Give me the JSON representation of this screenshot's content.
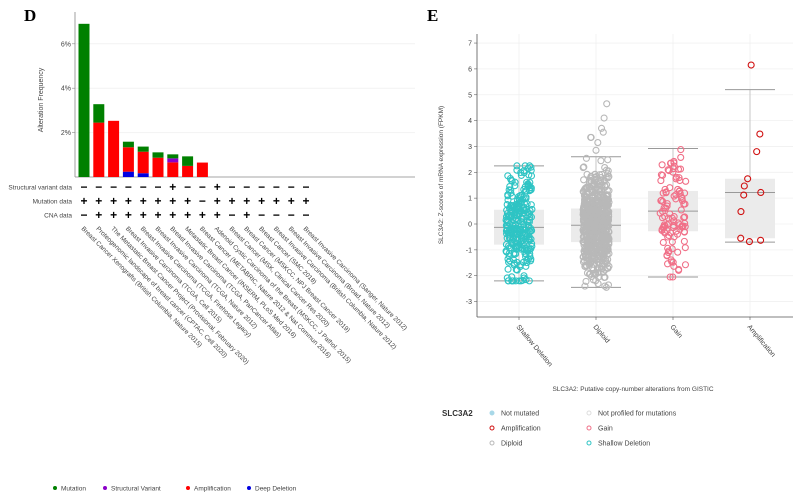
{
  "chart_data": [
    {
      "panel": "D",
      "type": "bar",
      "stacked": true,
      "ylabel": "Alteration Frequency",
      "ylim": [
        0,
        7
      ],
      "yticks": [
        "2%",
        "4%",
        "6%"
      ],
      "yticks_values": [
        2,
        4,
        6
      ],
      "categories": [
        "Breast Cancer Xenografts (British Columbia, Nature 2015)",
        "Proteogenomic landscape of breast cancer (CPTAC, Cell 2020)",
        "The Metastatic Breast Cancer Project (Provisional, February 2020)",
        "Breast Invasive Carcinoma (TCGA, Cell 2015)",
        "Breast Invasive Carcinoma (TCGA, Firehose Legacy)",
        "Breast Invasive Carcinoma (TCGA, Nature 2012)",
        "Breast Invasive Carcinoma (TCGA, PanCancer Atlas)",
        "Metastatic Breast Cancer (INSERM, PLoS Med 2016)",
        "Breast Cancer (METABRIC, Nature 2012 & Nat Commun 2016)",
        "Adenoid Cystic Carcinoma of the Breast (MSKCC, J Pathol. 2015)",
        "Breast Cancer (MSK, Clinical Cancer Res 2020)",
        "Breast Cancer (MSKCC, NPJ Breast Cancer 2019)",
        "Breast Cancer (SMC 2018)",
        "Breast Invasive Carcinoma (British Columbia, Nature 2012)",
        "Breast Invasive Carcinoma (Broad, Nature 2012)",
        "Breast Invasive Carcinoma (Sanger, Nature 2012)"
      ],
      "series": [
        {
          "name": "Deep Deletion",
          "color": "#0000e0",
          "values": [
            0,
            0,
            0,
            0.24,
            0.17,
            0,
            0,
            0,
            0,
            0,
            0,
            0,
            0,
            0,
            0,
            0
          ]
        },
        {
          "name": "Amplification",
          "color": "#ff0000",
          "values": [
            0,
            2.45,
            2.53,
            1.1,
            0.97,
            0.87,
            0.66,
            0.5,
            0.65,
            0,
            0,
            0,
            0,
            0,
            0,
            0
          ]
        },
        {
          "name": "Structural Variant",
          "color": "#8b00c9",
          "values": [
            0,
            0,
            0,
            0,
            0,
            0,
            0.18,
            0,
            0,
            0,
            0,
            0,
            0,
            0,
            0,
            0
          ]
        },
        {
          "name": "Mutation",
          "color": "#008000",
          "values": [
            6.9,
            0.83,
            0,
            0.25,
            0.23,
            0.24,
            0.18,
            0.43,
            0,
            0,
            0,
            0,
            0,
            0,
            0,
            0
          ]
        }
      ],
      "legend_order": [
        "Mutation",
        "Structural Variant",
        "Amplification",
        "Deep Deletion"
      ],
      "legend_placement": "bottom",
      "profile_matrix": {
        "rows": [
          {
            "label": "Structural variant data",
            "values": [
              "-",
              "-",
              "-",
              "-",
              "-",
              "-",
              "+",
              "-",
              "-",
              "+",
              "-",
              "-",
              "-",
              "-",
              "-",
              "-"
            ]
          },
          {
            "label": "Mutation data",
            "values": [
              "+",
              "+",
              "+",
              "+",
              "+",
              "+",
              "+",
              "+",
              "-",
              "+",
              "+",
              "+",
              "+",
              "+",
              "+",
              "+"
            ]
          },
          {
            "label": "CNA data",
            "values": [
              "-",
              "+",
              "+",
              "+",
              "+",
              "+",
              "+",
              "+",
              "+",
              "+",
              "-",
              "+",
              "-",
              "-",
              "-",
              "-"
            ]
          }
        ]
      }
    },
    {
      "panel": "E",
      "type": "scatter",
      "subtype": "box-jitter",
      "ylabel": "SLC3A2: Z-scores of mRNA expression (FPKM)",
      "xlabel": "SLC3A2: Putative copy-number alterations from GISTIC",
      "ylim": [
        -3.5,
        7.3
      ],
      "yticks": [
        -3,
        -2,
        -1,
        0,
        1,
        2,
        3,
        4,
        5,
        6,
        7
      ],
      "grid": true,
      "categories": [
        "Shallow Deletion",
        "Diploid",
        "Gain",
        "Amplification"
      ],
      "boxes": [
        {
          "category": "Shallow Deletion",
          "color": "#2ec4c4",
          "whisker_low": -2.2,
          "q1": -0.8,
          "median": -0.13,
          "q3": 0.55,
          "whisker_high": 2.25,
          "n_points": 260
        },
        {
          "category": "Diploid",
          "color": "#b8b8b8",
          "whisker_low": -2.45,
          "q1": -0.7,
          "median": -0.05,
          "q3": 0.6,
          "whisker_high": 2.6,
          "n_points": 650,
          "outliers": [
            4.65,
            4.1,
            3.7,
            3.55,
            3.35,
            3.35,
            3.15,
            2.85
          ]
        },
        {
          "category": "Gain",
          "color": "#f07088",
          "whisker_low": -2.05,
          "q1": -0.28,
          "median": 0.5,
          "q3": 1.28,
          "whisker_high": 2.92,
          "n_points": 110
        },
        {
          "category": "Amplification",
          "color": "#d01010",
          "whisker_low": -0.7,
          "q1": -0.55,
          "median": 1.22,
          "q3": 1.75,
          "whisker_high": 5.2,
          "points": [
            6.15,
            3.48,
            2.8,
            1.75,
            1.47,
            1.22,
            1.12,
            0.48,
            -0.55,
            -0.63,
            -0.68
          ]
        }
      ],
      "legend": {
        "title": "SLC3A2",
        "items": [
          {
            "label": "Not mutated",
            "color": "#a8d8e8",
            "filled": true
          },
          {
            "label": "Not profiled for mutations",
            "color": "#dddddd",
            "filled": false
          },
          {
            "label": "Amplification",
            "color": "#d01010",
            "filled": false
          },
          {
            "label": "Gain",
            "color": "#f07088",
            "filled": false
          },
          {
            "label": "Diploid",
            "color": "#b8b8b8",
            "filled": false
          },
          {
            "label": "Shallow Deletion",
            "color": "#2ec4c4",
            "filled": false
          }
        ]
      }
    }
  ],
  "panels": {
    "d_letter": "D",
    "e_letter": "E"
  }
}
